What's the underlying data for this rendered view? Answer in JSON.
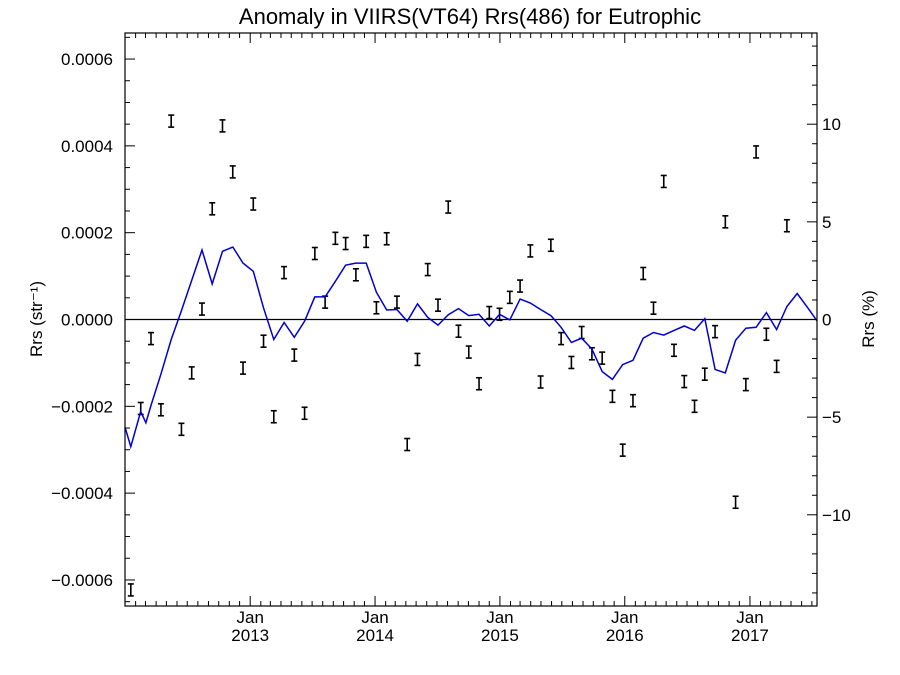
{
  "chart_data": {
    "type": "scatter",
    "title": "Anomaly in VIIRS(VT64) Rrs(486) for Eutrophic",
    "ylabel": "Rrs (str⁻¹)",
    "ylabel2": "Rrs (%)",
    "x_range": [
      "2012-01-01",
      "2017-07-16"
    ],
    "ylim": [
      -0.00066,
      0.00066
    ],
    "ylim2": [
      -14.67,
      14.67
    ],
    "yticks": [
      {
        "value": -0.0006,
        "label": "−0.0006"
      },
      {
        "value": -0.0004,
        "label": "−0.0004"
      },
      {
        "value": -0.0002,
        "label": "−0.0002"
      },
      {
        "value": 0.0,
        "label": "0.0000"
      },
      {
        "value": 0.0002,
        "label": "0.0002"
      },
      {
        "value": 0.0004,
        "label": "0.0004"
      },
      {
        "value": 0.0006,
        "label": "0.0006"
      }
    ],
    "yticks2": [
      {
        "value": -10,
        "label": "−10"
      },
      {
        "value": -5,
        "label": "−5"
      },
      {
        "value": 0,
        "label": "0"
      },
      {
        "value": 5,
        "label": "5"
      },
      {
        "value": 10,
        "label": "10"
      }
    ],
    "xticks": [
      {
        "date": "2013-01-01",
        "month": "Jan",
        "year": "2013"
      },
      {
        "date": "2014-01-01",
        "month": "Jan",
        "year": "2014"
      },
      {
        "date": "2015-01-01",
        "month": "Jan",
        "year": "2015"
      },
      {
        "date": "2016-01-01",
        "month": "Jan",
        "year": "2016"
      },
      {
        "date": "2017-01-01",
        "month": "Jan",
        "year": "2017"
      }
    ],
    "zero_line": true,
    "series": [
      {
        "type": "errorbar",
        "color": "#000000",
        "points": [
          {
            "x": "2012-01-18",
            "y": -0.000623
          },
          {
            "x": "2012-02-16",
            "y": -0.000205
          },
          {
            "x": "2012-03-17",
            "y": -4.4e-05
          },
          {
            "x": "2012-04-15",
            "y": -0.000208
          },
          {
            "x": "2012-05-15",
            "y": 0.000457
          },
          {
            "x": "2012-06-14",
            "y": -0.000253
          },
          {
            "x": "2012-07-14",
            "y": -0.000123
          },
          {
            "x": "2012-08-13",
            "y": 2.4e-05
          },
          {
            "x": "2012-09-12",
            "y": 0.000255
          },
          {
            "x": "2012-10-12",
            "y": 0.000446
          },
          {
            "x": "2012-11-11",
            "y": 0.00034
          },
          {
            "x": "2012-12-11",
            "y": -0.000112
          },
          {
            "x": "2013-01-10",
            "y": 0.000266
          },
          {
            "x": "2013-02-09",
            "y": -5e-05
          },
          {
            "x": "2013-03-11",
            "y": -0.000224
          },
          {
            "x": "2013-04-10",
            "y": 0.000108
          },
          {
            "x": "2013-05-10",
            "y": -8.2e-05
          },
          {
            "x": "2013-06-09",
            "y": -0.000216
          },
          {
            "x": "2013-07-09",
            "y": 0.000152
          },
          {
            "x": "2013-08-08",
            "y": 4e-05
          },
          {
            "x": "2013-09-07",
            "y": 0.000187
          },
          {
            "x": "2013-10-07",
            "y": 0.000175
          },
          {
            "x": "2013-11-06",
            "y": 0.000103
          },
          {
            "x": "2013-12-06",
            "y": 0.00018
          },
          {
            "x": "2014-01-05",
            "y": 2.7e-05
          },
          {
            "x": "2014-02-04",
            "y": 0.000186
          },
          {
            "x": "2014-03-06",
            "y": 4e-05
          },
          {
            "x": "2014-04-05",
            "y": -0.000288
          },
          {
            "x": "2014-05-05",
            "y": -9.2e-05
          },
          {
            "x": "2014-06-04",
            "y": 0.000115
          },
          {
            "x": "2014-07-04",
            "y": 3.3e-05
          },
          {
            "x": "2014-08-03",
            "y": 0.000259
          },
          {
            "x": "2014-09-02",
            "y": -2.7e-05
          },
          {
            "x": "2014-10-02",
            "y": -7.5e-05
          },
          {
            "x": "2014-11-01",
            "y": -0.000148
          },
          {
            "x": "2014-12-01",
            "y": 1.6e-05
          },
          {
            "x": "2014-12-31",
            "y": 1.2e-05
          },
          {
            "x": "2015-01-30",
            "y": 5.1e-05
          },
          {
            "x": "2015-03-01",
            "y": 7.7e-05
          },
          {
            "x": "2015-03-31",
            "y": 0.000158
          },
          {
            "x": "2015-04-30",
            "y": -0.000144
          },
          {
            "x": "2015-05-30",
            "y": 0.000171
          },
          {
            "x": "2015-06-29",
            "y": -4.4e-05
          },
          {
            "x": "2015-07-29",
            "y": -9.9e-05
          },
          {
            "x": "2015-08-28",
            "y": -3e-05
          },
          {
            "x": "2015-09-27",
            "y": -7.9e-05
          },
          {
            "x": "2015-10-27",
            "y": -8.9e-05
          },
          {
            "x": "2015-11-26",
            "y": -0.000177
          },
          {
            "x": "2015-12-26",
            "y": -0.000301
          },
          {
            "x": "2016-01-25",
            "y": -0.000187
          },
          {
            "x": "2016-02-24",
            "y": 0.000106
          },
          {
            "x": "2016-03-25",
            "y": 2.6e-05
          },
          {
            "x": "2016-04-24",
            "y": 0.000318
          },
          {
            "x": "2016-05-24",
            "y": -7.1e-05
          },
          {
            "x": "2016-06-23",
            "y": -0.000143
          },
          {
            "x": "2016-07-23",
            "y": -0.0002
          },
          {
            "x": "2016-08-22",
            "y": -0.000126
          },
          {
            "x": "2016-09-21",
            "y": -2.8e-05
          },
          {
            "x": "2016-10-21",
            "y": 0.000225
          },
          {
            "x": "2016-11-20",
            "y": -0.000421
          },
          {
            "x": "2016-12-20",
            "y": -0.00015
          },
          {
            "x": "2017-01-19",
            "y": 0.000386
          },
          {
            "x": "2017-02-18",
            "y": -3.4e-05
          },
          {
            "x": "2017-03-20",
            "y": -0.000108
          },
          {
            "x": "2017-04-19",
            "y": 0.000216
          }
        ]
      },
      {
        "type": "line",
        "color": "#0000d0",
        "points": [
          {
            "x": "2012-01-01",
            "y": -0.000248
          },
          {
            "x": "2012-01-18",
            "y": -0.000293
          },
          {
            "x": "2012-02-16",
            "y": -0.000212
          },
          {
            "x": "2012-03-02",
            "y": -0.000238
          },
          {
            "x": "2012-03-17",
            "y": -0.000198
          },
          {
            "x": "2012-04-15",
            "y": -0.000126
          },
          {
            "x": "2012-05-15",
            "y": -4.6e-05
          },
          {
            "x": "2012-06-14",
            "y": 2e-05
          },
          {
            "x": "2012-07-14",
            "y": 9e-05
          },
          {
            "x": "2012-08-13",
            "y": 0.00016
          },
          {
            "x": "2012-09-12",
            "y": 8.2e-05
          },
          {
            "x": "2012-10-12",
            "y": 0.000157
          },
          {
            "x": "2012-11-11",
            "y": 0.000167
          },
          {
            "x": "2012-12-11",
            "y": 0.00013
          },
          {
            "x": "2013-01-10",
            "y": 0.000111
          },
          {
            "x": "2013-02-09",
            "y": 2.7e-05
          },
          {
            "x": "2013-03-11",
            "y": -4.6e-05
          },
          {
            "x": "2013-04-10",
            "y": -7e-06
          },
          {
            "x": "2013-05-10",
            "y": -4.1e-05
          },
          {
            "x": "2013-06-09",
            "y": -4e-06
          },
          {
            "x": "2013-07-09",
            "y": 5.2e-05
          },
          {
            "x": "2013-08-08",
            "y": 5.2e-05
          },
          {
            "x": "2013-09-07",
            "y": 8.8e-05
          },
          {
            "x": "2013-10-07",
            "y": 0.000125
          },
          {
            "x": "2013-11-06",
            "y": 0.00013
          },
          {
            "x": "2013-12-06",
            "y": 0.00013
          },
          {
            "x": "2014-01-05",
            "y": 6.3e-05
          },
          {
            "x": "2014-02-04",
            "y": 2.2e-05
          },
          {
            "x": "2014-03-06",
            "y": 2.3e-05
          },
          {
            "x": "2014-04-05",
            "y": -4e-06
          },
          {
            "x": "2014-05-05",
            "y": 3.6e-05
          },
          {
            "x": "2014-06-04",
            "y": 5e-06
          },
          {
            "x": "2014-07-04",
            "y": -1.3e-05
          },
          {
            "x": "2014-08-03",
            "y": 1.1e-05
          },
          {
            "x": "2014-09-02",
            "y": 2.5e-05
          },
          {
            "x": "2014-10-02",
            "y": 9e-06
          },
          {
            "x": "2014-11-01",
            "y": 1.2e-05
          },
          {
            "x": "2014-12-01",
            "y": -1.5e-05
          },
          {
            "x": "2014-12-31",
            "y": 1.2e-05
          },
          {
            "x": "2015-01-30",
            "y": -1e-06
          },
          {
            "x": "2015-03-01",
            "y": 4.7e-05
          },
          {
            "x": "2015-03-31",
            "y": 3.8e-05
          },
          {
            "x": "2015-04-30",
            "y": 2.3e-05
          },
          {
            "x": "2015-05-30",
            "y": 9e-06
          },
          {
            "x": "2015-06-29",
            "y": -1.8e-05
          },
          {
            "x": "2015-07-29",
            "y": -5.3e-05
          },
          {
            "x": "2015-08-28",
            "y": -4.3e-05
          },
          {
            "x": "2015-09-27",
            "y": -6.8e-05
          },
          {
            "x": "2015-10-27",
            "y": -0.00012
          },
          {
            "x": "2015-11-26",
            "y": -0.000138
          },
          {
            "x": "2015-12-26",
            "y": -0.000104
          },
          {
            "x": "2016-01-25",
            "y": -9.4e-05
          },
          {
            "x": "2016-02-24",
            "y": -4.3e-05
          },
          {
            "x": "2016-03-25",
            "y": -3e-05
          },
          {
            "x": "2016-04-24",
            "y": -3.6e-05
          },
          {
            "x": "2016-05-24",
            "y": -2.5e-05
          },
          {
            "x": "2016-06-23",
            "y": -1.5e-05
          },
          {
            "x": "2016-07-23",
            "y": -2.5e-05
          },
          {
            "x": "2016-08-22",
            "y": 2e-06
          },
          {
            "x": "2016-09-21",
            "y": -0.000115
          },
          {
            "x": "2016-10-21",
            "y": -0.000123
          },
          {
            "x": "2016-11-20",
            "y": -4.8e-05
          },
          {
            "x": "2016-12-20",
            "y": -2e-05
          },
          {
            "x": "2017-01-19",
            "y": -1.8e-05
          },
          {
            "x": "2017-02-18",
            "y": 1.6e-05
          },
          {
            "x": "2017-03-20",
            "y": -2.3e-05
          },
          {
            "x": "2017-04-19",
            "y": 3e-05
          },
          {
            "x": "2017-05-19",
            "y": 6e-05
          },
          {
            "x": "2017-06-18",
            "y": 2.8e-05
          },
          {
            "x": "2017-07-16",
            "y": -3e-06
          }
        ]
      }
    ]
  }
}
